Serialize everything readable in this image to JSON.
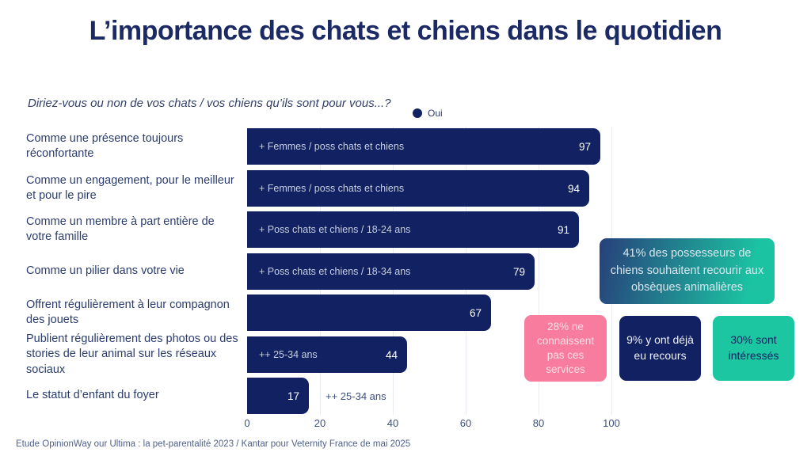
{
  "title": "L’importance des chats et chiens dans le quotidien",
  "subtitle": "Diriez-vous ou non de vos chats / vos chiens qu’ils sont pour vous...?",
  "legend": {
    "label": "Oui",
    "color": "#122161"
  },
  "colors": {
    "bar_navy": "#122161",
    "title_navy": "#1b2a64",
    "pink": "#f87c9d",
    "green": "#1cc6a0",
    "gradient_start": "#27407b",
    "gradient_end": "#1cc3a2",
    "gridline": "#ebebf2"
  },
  "chart_data": {
    "type": "bar",
    "orientation": "horizontal",
    "title": "L’importance des chats et chiens dans le quotidien",
    "series_name": "Oui",
    "categories": [
      "Comme une présence toujours réconfortante",
      "Comme un engagement, pour le meilleur et pour le pire",
      "Comme un membre à part entière de votre famille",
      "Comme un pilier dans votre vie",
      "Offrent régulièrement à leur compagnon des jouets",
      "Publient régulièrement des photos ou des stories de leur animal sur les réseaux sociaux",
      "Le statut d’enfant du foyer"
    ],
    "values": [
      97,
      94,
      91,
      79,
      67,
      44,
      17
    ],
    "annotations": [
      "+ Femmes / poss chats et chiens",
      "+ Femmes / poss chats et chiens",
      "+ Poss chats et chiens / 18-24 ans",
      "+ Poss chats et chiens / 18-34 ans",
      "",
      "++ 25-34 ans",
      "++ 25-34 ans"
    ],
    "annotation_placement": [
      "inside",
      "inside",
      "inside",
      "inside",
      "none",
      "inside",
      "outside"
    ],
    "xlim": [
      0,
      100
    ],
    "x_ticks": [
      0,
      20,
      40,
      60,
      80,
      100
    ],
    "grid": true,
    "legend_position": "top"
  },
  "callouts": {
    "gradient": {
      "text": "41% des possesseurs de chiens souhaitent recourir aux obsèques animalières",
      "text_color": "#dbe6ee"
    },
    "pink": {
      "text": "28% ne connaissent pas ces services",
      "bg": "#f87c9d",
      "text_color": "#fcdde6"
    },
    "navy": {
      "text": "9% y ont déjà eu recours",
      "bg": "#122161",
      "text_color": "#eef2f8"
    },
    "green": {
      "text": "30% sont intéressés",
      "bg": "#1cc6a0",
      "text_color": "#12225f"
    }
  },
  "footer": "Etude OpinionWay our Ultima : la pet-parentalité 2023 / Kantar pour Veternity France de mai 2025"
}
